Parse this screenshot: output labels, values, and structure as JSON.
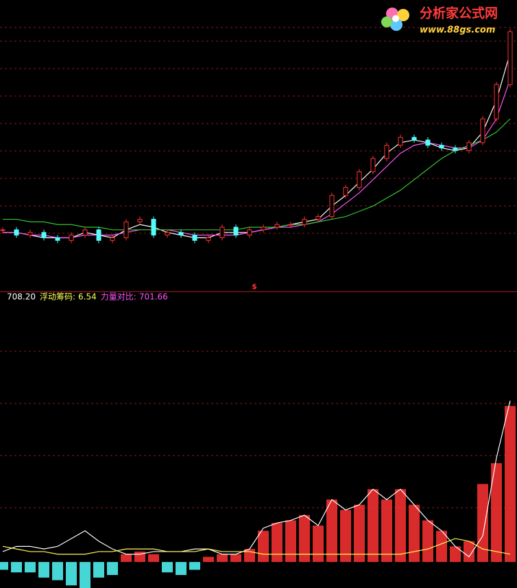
{
  "logo": {
    "title": "分析家公式网",
    "url": "www.88gs.com"
  },
  "signal_marker": "$",
  "indicator_legend": [
    {
      "value": "708.20",
      "color": "#ffffff"
    },
    {
      "name": "浮动筹码:",
      "value": "6.54",
      "color": "#ffff54"
    },
    {
      "name": "力量对比:",
      "value": "701.66",
      "color": "#ff54ff"
    }
  ],
  "chart_data": [
    {
      "type": "candlestick",
      "ylim": [
        0,
        100
      ],
      "up_color": "#ff3232",
      "down_color": "#54fcfc",
      "close": [
        13,
        11,
        12,
        10,
        9,
        11,
        13,
        9,
        10,
        16,
        17,
        11,
        12,
        11,
        9,
        10,
        14,
        11,
        13,
        14,
        15,
        15,
        17,
        18,
        26,
        29,
        35,
        40,
        45,
        48,
        47,
        45,
        44,
        43,
        46,
        55,
        68,
        88
      ],
      "series": [
        {
          "color": "#ffffff",
          "values": [
            12,
            12,
            11,
            10,
            10,
            10,
            12,
            11,
            10,
            13,
            15,
            14,
            12,
            11,
            10,
            10,
            12,
            12,
            12,
            13,
            14,
            15,
            16,
            17,
            22,
            26,
            31,
            36,
            42,
            46,
            47,
            46,
            44,
            43,
            44,
            50,
            62,
            80
          ]
        },
        {
          "color": "#ff54ff",
          "values": [
            12,
            12,
            11,
            11,
            10,
            10,
            11,
            11,
            11,
            12,
            13,
            13,
            13,
            12,
            11,
            11,
            11,
            11,
            12,
            13,
            14,
            14,
            15,
            16,
            19,
            23,
            27,
            32,
            37,
            42,
            45,
            46,
            45,
            44,
            44,
            47,
            55,
            70
          ]
        },
        {
          "color": "#32c832",
          "values": [
            17,
            17,
            16,
            16,
            15,
            15,
            14,
            14,
            13,
            13,
            13,
            13,
            13,
            13,
            13,
            13,
            13,
            13,
            14,
            14,
            14,
            15,
            15,
            16,
            17,
            18,
            20,
            22,
            25,
            28,
            32,
            36,
            40,
            43,
            45,
            47,
            50,
            55
          ]
        }
      ]
    },
    {
      "type": "bar",
      "ylim": [
        -10,
        100
      ],
      "color": "#ff3232",
      "negative_color": "#54fcfc",
      "values": [
        -3,
        -4,
        -4,
        -6,
        -7,
        -9,
        -10,
        -6,
        -5,
        3,
        4,
        3,
        -4,
        -5,
        -3,
        2,
        3,
        3,
        5,
        12,
        15,
        16,
        18,
        14,
        24,
        20,
        22,
        28,
        24,
        28,
        22,
        16,
        12,
        6,
        8,
        30,
        38,
        60
      ],
      "series": [
        {
          "color": "#ffffff",
          "values": [
            4,
            6,
            6,
            5,
            6,
            9,
            12,
            8,
            5,
            3,
            3,
            4,
            4,
            4,
            5,
            5,
            3,
            3,
            5,
            13,
            15,
            16,
            18,
            14,
            24,
            20,
            22,
            28,
            24,
            28,
            22,
            16,
            12,
            6,
            2,
            10,
            40,
            62
          ]
        },
        {
          "color": "#ffff54",
          "values": [
            6,
            5,
            4,
            4,
            3,
            3,
            3,
            4,
            4,
            5,
            5,
            5,
            4,
            4,
            4,
            5,
            4,
            4,
            4,
            3,
            3,
            3,
            3,
            3,
            3,
            3,
            3,
            3,
            3,
            3,
            4,
            5,
            7,
            9,
            8,
            5,
            4,
            3
          ]
        }
      ]
    }
  ]
}
